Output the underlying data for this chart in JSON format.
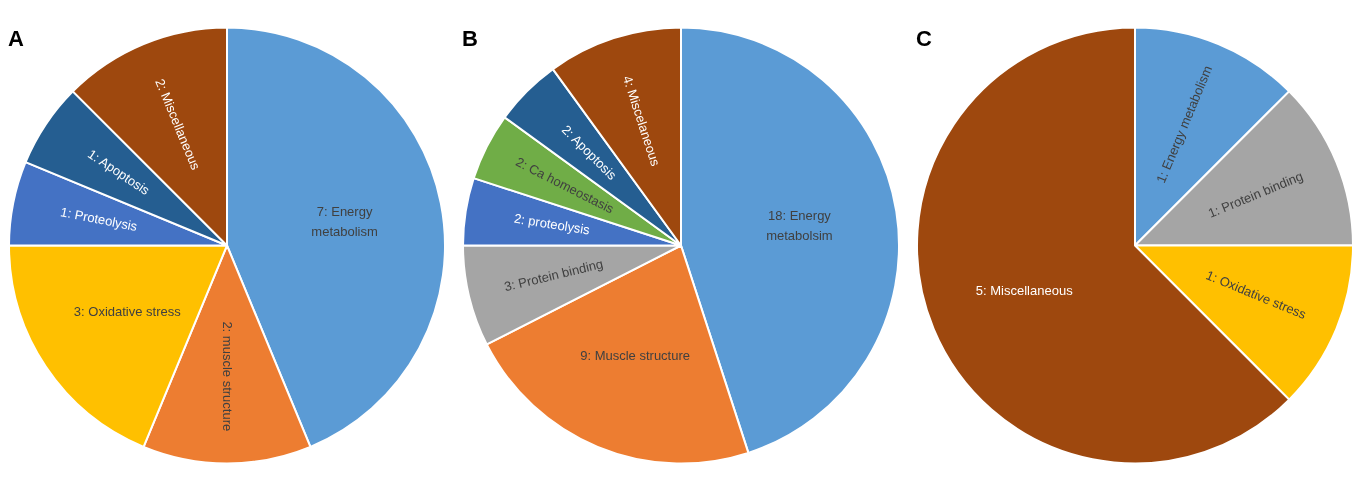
{
  "chart_data": [
    {
      "type": "pie",
      "title": "A",
      "categories": [
        "7: Energy metabolism",
        "2: muscle structure",
        "3: Oxidative stress",
        "1: Proteolysis",
        "1: Apoptosis",
        "2: Miscellaneous"
      ],
      "values": [
        7,
        2,
        3,
        1,
        1,
        2
      ],
      "colors": [
        "#5b9bd5",
        "#ed7d31",
        "#ffc000",
        "#4472c4",
        "#255e91",
        "#9e480e"
      ]
    },
    {
      "type": "pie",
      "title": "B",
      "categories": [
        "18: Energy metabolsim",
        "9: Muscle structure",
        "3: Protein binding",
        "2: proteolysis",
        "2: Ca homeostasis",
        "2: Apoptosis",
        "4: Miscelaneous"
      ],
      "values": [
        18,
        9,
        3,
        2,
        2,
        2,
        4
      ],
      "colors": [
        "#5b9bd5",
        "#ed7d31",
        "#a5a5a5",
        "#4472c4",
        "#70ad47",
        "#255e91",
        "#9e480e"
      ]
    },
    {
      "type": "pie",
      "title": "C",
      "categories": [
        "1: Energy metabolism",
        "1: Protein binding",
        "1: Oxidative stress",
        "5: Miscellaneous"
      ],
      "values": [
        1,
        1,
        1,
        5
      ],
      "colors": [
        "#5b9bd5",
        "#a5a5a5",
        "#ffc000",
        "#9e480e"
      ]
    }
  ]
}
